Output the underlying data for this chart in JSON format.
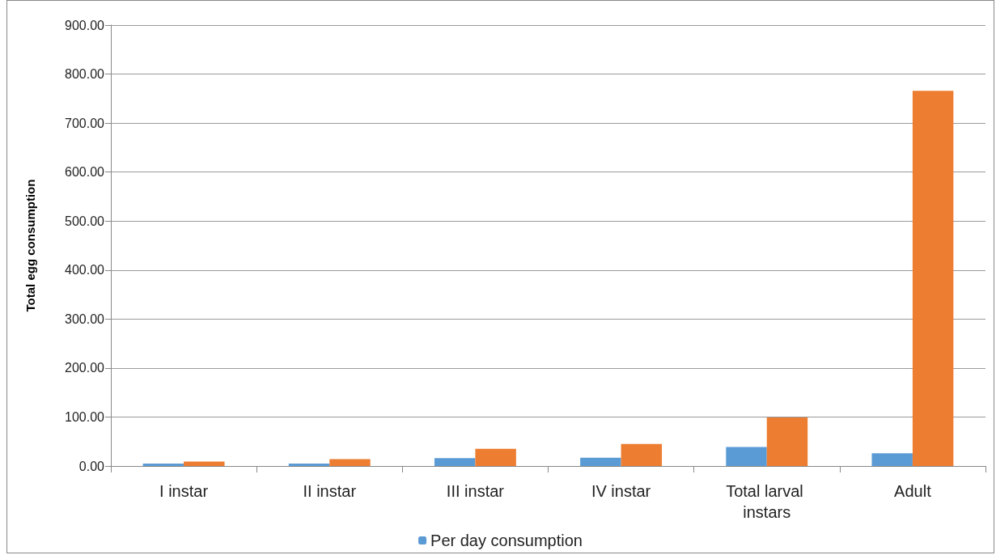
{
  "chart_data": {
    "type": "bar",
    "ylabel": "Total egg consumption",
    "categories": [
      "I instar",
      "II instar",
      "III instar",
      "IV instar",
      "Total larval instars",
      "Adult"
    ],
    "series": [
      {
        "name": "Per day consumption",
        "color": "#5b9bd5",
        "values": [
          5,
          5,
          16,
          17,
          39,
          26
        ]
      },
      {
        "color": "#ed7d31",
        "values": [
          9,
          14,
          35,
          45,
          99,
          766
        ]
      }
    ],
    "ylim": [
      0,
      900
    ],
    "yticks": [
      {
        "value": 0,
        "label": "0.00"
      },
      {
        "value": 100,
        "label": "100.00"
      },
      {
        "value": 200,
        "label": "200.00"
      },
      {
        "value": 300,
        "label": "300.00"
      },
      {
        "value": 400,
        "label": "400.00"
      },
      {
        "value": 500,
        "label": "500.00"
      },
      {
        "value": 600,
        "label": "600.00"
      },
      {
        "value": 700,
        "label": "700.00"
      },
      {
        "value": 800,
        "label": "800.00"
      },
      {
        "value": 900,
        "label": "900.00"
      }
    ],
    "grid": "y",
    "legend": "bottom"
  }
}
